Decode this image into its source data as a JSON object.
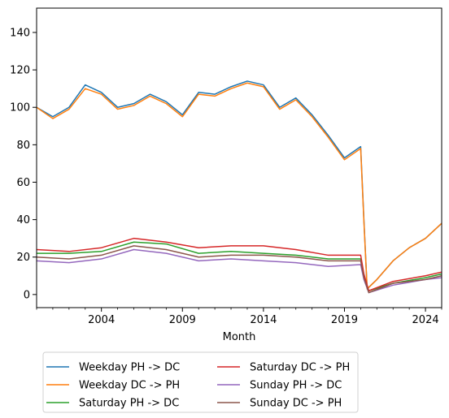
{
  "chart_data": {
    "type": "line",
    "title": "",
    "xlabel": "Month",
    "ylabel": "",
    "xlim": [
      2000.0,
      2025.0
    ],
    "ylim": [
      -7,
      153
    ],
    "x_ticks": [
      2004,
      2009,
      2014,
      2019,
      2024
    ],
    "x_tick_labels": [
      "2004",
      "2009",
      "2014",
      "2019",
      "2024"
    ],
    "y_ticks": [
      0,
      20,
      40,
      60,
      80,
      100,
      120,
      140
    ],
    "y_tick_labels": [
      "0",
      "20",
      "40",
      "60",
      "80",
      "100",
      "120",
      "140"
    ],
    "grid": false,
    "legend": "below plot, 2 columns",
    "series": [
      {
        "name": "Weekday PH -> DC",
        "color": "#1f77b4",
        "x": [
          2000.0,
          2001.0,
          2002.0,
          2003.0,
          2004.0,
          2005.0,
          2006.0,
          2007.0,
          2008.0,
          2009.0,
          2010.0,
          2011.0,
          2012.0,
          2013.0,
          2014.0,
          2015.0,
          2016.0,
          2017.0,
          2018.0,
          2019.0,
          2020.0,
          2020.2,
          2020.4,
          2021.0,
          2022.0,
          2023.0,
          2024.0,
          2025.0
        ],
        "y": [
          100,
          95,
          100,
          112,
          108,
          100,
          102,
          107,
          103,
          96,
          108,
          107,
          111,
          114,
          112,
          100,
          105,
          96,
          85,
          73,
          79,
          40,
          3,
          8,
          18,
          25,
          30,
          38
        ]
      },
      {
        "name": "Weekday DC -> PH",
        "color": "#ff7f0e",
        "x": [
          2000.0,
          2001.0,
          2002.0,
          2003.0,
          2004.0,
          2005.0,
          2006.0,
          2007.0,
          2008.0,
          2009.0,
          2010.0,
          2011.0,
          2012.0,
          2013.0,
          2014.0,
          2015.0,
          2016.0,
          2017.0,
          2018.0,
          2019.0,
          2020.0,
          2020.2,
          2020.4,
          2021.0,
          2022.0,
          2023.0,
          2024.0,
          2025.0
        ],
        "y": [
          100,
          94,
          99,
          110,
          107,
          99,
          101,
          106,
          102,
          95,
          107,
          106,
          110,
          113,
          111,
          99,
          104,
          95,
          84,
          72,
          78,
          39,
          3,
          8,
          18,
          25,
          30,
          38
        ]
      },
      {
        "name": "Saturday PH -> DC",
        "color": "#2ca02c",
        "x": [
          2000.0,
          2002.0,
          2004.0,
          2006.0,
          2008.0,
          2010.0,
          2012.0,
          2014.0,
          2016.0,
          2018.0,
          2020.0,
          2020.2,
          2020.5,
          2022.0,
          2024.0,
          2025.0
        ],
        "y": [
          22,
          22,
          23,
          28,
          27,
          22,
          23,
          22,
          21,
          19,
          19,
          10,
          2,
          6,
          9,
          11
        ]
      },
      {
        "name": "Saturday DC -> PH",
        "color": "#d62728",
        "x": [
          2000.0,
          2002.0,
          2004.0,
          2006.0,
          2008.0,
          2010.0,
          2012.0,
          2014.0,
          2016.0,
          2018.0,
          2020.0,
          2020.2,
          2020.5,
          2022.0,
          2024.0,
          2025.0
        ],
        "y": [
          24,
          23,
          25,
          30,
          28,
          25,
          26,
          26,
          24,
          21,
          21,
          11,
          2,
          7,
          10,
          12
        ]
      },
      {
        "name": "Sunday PH -> DC",
        "color": "#9467bd",
        "x": [
          2000.0,
          2002.0,
          2004.0,
          2006.0,
          2008.0,
          2010.0,
          2012.0,
          2014.0,
          2016.0,
          2018.0,
          2020.0,
          2020.2,
          2020.5,
          2022.0,
          2024.0,
          2025.0
        ],
        "y": [
          18,
          17,
          19,
          24,
          22,
          18,
          19,
          18,
          17,
          15,
          16,
          8,
          1,
          5,
          8,
          9
        ]
      },
      {
        "name": "Sunday DC -> PH",
        "color": "#8c564b",
        "x": [
          2000.0,
          2002.0,
          2004.0,
          2006.0,
          2008.0,
          2010.0,
          2012.0,
          2014.0,
          2016.0,
          2018.0,
          2020.0,
          2020.2,
          2020.5,
          2022.0,
          2024.0,
          2025.0
        ],
        "y": [
          20,
          19,
          21,
          26,
          24,
          20,
          21,
          21,
          20,
          18,
          18,
          9,
          1,
          6,
          8,
          10
        ]
      }
    ]
  }
}
